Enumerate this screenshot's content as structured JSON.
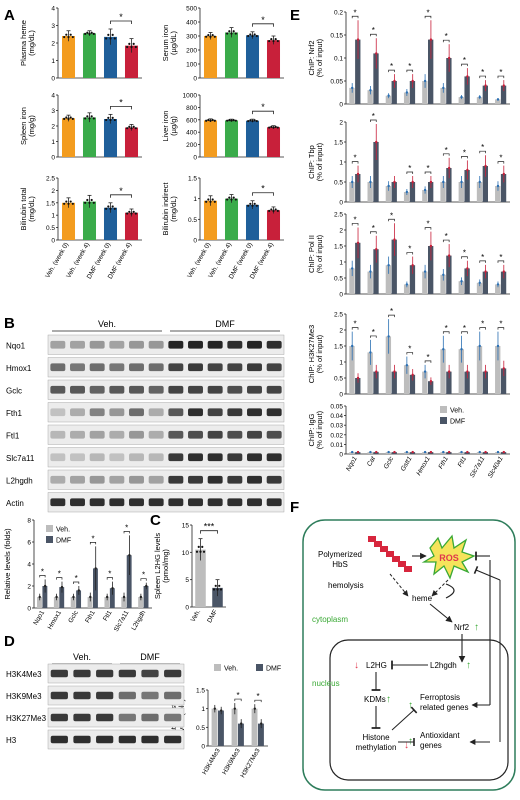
{
  "colors": {
    "veh0": "#f39c1f",
    "veh4": "#3aab4a",
    "dmf0": "#1f5f9a",
    "dmf4": "#c8203a",
    "grey": "#bdbdbd",
    "dark": "#4a5566",
    "accent": "#e0364c",
    "teal": "#2f8f75",
    "green": "#3aa935"
  },
  "panel_letters": {
    "A": "A",
    "B": "B",
    "C": "C",
    "D": "D",
    "E": "E",
    "F": "F"
  },
  "panel_a_xlabels": [
    "Veh. (week 0)",
    "Veh. (week 4)",
    "DMF (week 0)",
    "DMF (week 4)"
  ],
  "chart_data": [
    {
      "type": "bar",
      "id": "a-heme",
      "ylabel_lines": [
        "Plasma heme",
        "(mg/dL)"
      ],
      "ylim": [
        0,
        4
      ],
      "ticks": [
        0,
        1,
        2,
        3,
        4
      ],
      "categories": [
        "Veh. (week 0)",
        "Veh. (week 4)",
        "DMF (week 0)",
        "DMF (week 4)"
      ],
      "values": [
        2.4,
        2.55,
        2.35,
        1.85
      ],
      "errors": [
        0.3,
        0.15,
        0.45,
        0.4
      ],
      "sig": "*"
    },
    {
      "type": "bar",
      "id": "a-serum",
      "ylabel_lines": [
        "Serum iron",
        "(µg/dL)"
      ],
      "ylim": [
        0,
        500
      ],
      "ticks": [
        0,
        100,
        200,
        300,
        400,
        500
      ],
      "categories": [
        "Veh. (week 0)",
        "Veh. (week 4)",
        "DMF (week 0)",
        "DMF (week 4)"
      ],
      "values": [
        300,
        325,
        305,
        270
      ],
      "errors": [
        25,
        35,
        25,
        30
      ],
      "sig": "*"
    },
    {
      "type": "bar",
      "id": "a-spleen",
      "ylabel_lines": [
        "Spleen iron",
        "(mg/g)"
      ],
      "ylim": [
        0,
        4
      ],
      "ticks": [
        0,
        1,
        2,
        3,
        4
      ],
      "categories": [
        "Veh. (week 0)",
        "Veh. (week 4)",
        "DMF (week 0)",
        "DMF (week 4)"
      ],
      "values": [
        2.5,
        2.55,
        2.45,
        1.9
      ],
      "errors": [
        0.2,
        0.3,
        0.3,
        0.2
      ],
      "sig": "*"
    },
    {
      "type": "bar",
      "id": "a-liver",
      "ylabel_lines": [
        "Liver iron",
        "(µg/g)"
      ],
      "ylim": [
        0,
        1000
      ],
      "ticks": [
        0,
        200,
        400,
        600,
        800,
        1000
      ],
      "categories": [
        "Veh. (week 0)",
        "Veh. (week 4)",
        "DMF (week 0)",
        "DMF (week 4)"
      ],
      "values": [
        590,
        590,
        585,
        480
      ],
      "errors": [
        25,
        20,
        25,
        25
      ],
      "sig": "*"
    },
    {
      "type": "bar",
      "id": "a-bilitot",
      "ylabel_lines": [
        "Bilirubin total",
        "(mg/dL)"
      ],
      "ylim": [
        0,
        2.5
      ],
      "ticks": [
        0,
        0.5,
        1.0,
        1.5,
        2.0,
        2.5
      ],
      "categories": [
        "Veh. (week 0)",
        "Veh. (week 4)",
        "DMF (week 0)",
        "DMF (week 4)"
      ],
      "values": [
        1.5,
        1.55,
        1.3,
        1.1
      ],
      "errors": [
        0.2,
        0.25,
        0.2,
        0.15
      ],
      "sig": "*"
    },
    {
      "type": "bar",
      "id": "a-biliind",
      "ylabel_lines": [
        "Bilirubin indirect",
        "(mg/dL)"
      ],
      "ylim": [
        0,
        1.5
      ],
      "ticks": [
        0,
        0.5,
        1.0,
        1.5
      ],
      "categories": [
        "Veh. (week 0)",
        "Veh. (week 4)",
        "DMF (week 0)",
        "DMF (week 4)"
      ],
      "values": [
        0.95,
        1.0,
        0.85,
        0.72
      ],
      "errors": [
        0.12,
        0.1,
        0.1,
        0.08
      ],
      "sig": "*"
    },
    {
      "type": "bar",
      "id": "b-quant",
      "ylabel": "Relative levels (folds)",
      "ylim": [
        0,
        8
      ],
      "ticks": [
        0,
        2,
        4,
        6,
        8
      ],
      "categories": [
        "Nqo1",
        "Hmox1",
        "Gclc",
        "Fth1",
        "Ftl1",
        "Slc7a11",
        "L2hgdh"
      ],
      "series": [
        {
          "name": "Veh.",
          "values": [
            1,
            1,
            1,
            1,
            1,
            1,
            1
          ],
          "errors": [
            0.3,
            0.3,
            0.3,
            0.4,
            0.3,
            0.4,
            0.3
          ]
        },
        {
          "name": "DMF",
          "values": [
            2.0,
            1.9,
            1.6,
            3.6,
            1.8,
            4.8,
            2.0
          ],
          "errors": [
            0.6,
            0.5,
            0.4,
            2.0,
            0.6,
            1.8,
            0.3
          ]
        }
      ],
      "sig": [
        "*",
        "*",
        "*",
        "*",
        "*",
        "*",
        "*"
      ]
    },
    {
      "type": "bar",
      "id": "c-l2hg",
      "ylabel_lines": [
        "Spleen L2HG levels",
        "(pmol/mg)"
      ],
      "ylim": [
        0,
        15
      ],
      "ticks": [
        0,
        5,
        10,
        15
      ],
      "categories": [
        "Veh.",
        "DMF"
      ],
      "values": [
        10.5,
        3.5
      ],
      "errors": [
        2.0,
        1.5
      ],
      "sig": "***"
    },
    {
      "type": "bar",
      "id": "d-hist",
      "ylabel_lines": [
        "Relative histone",
        "levels (fold)"
      ],
      "ylim": [
        0,
        1.5
      ],
      "ticks": [
        0,
        0.5,
        1.0,
        1.5
      ],
      "categories": [
        "H3K4Me3",
        "H3K9Me3",
        "H3K27Me3"
      ],
      "series": [
        {
          "name": "Veh.",
          "values": [
            1.0,
            1.0,
            1.0
          ],
          "errors": [
            0.1,
            0.15,
            0.12
          ]
        },
        {
          "name": "DMF",
          "values": [
            0.95,
            0.6,
            0.6
          ],
          "errors": [
            0.1,
            0.12,
            0.12
          ]
        }
      ],
      "sig": [
        "",
        "*",
        "*"
      ]
    },
    {
      "type": "bar",
      "id": "e-nrf2",
      "ylabel_lines": [
        "ChIP: Nrf2",
        "(% of input)"
      ],
      "ylim": [
        0,
        0.2
      ],
      "ticks": [
        0,
        0.05,
        0.1,
        0.15,
        0.2
      ],
      "categories": [
        "Nqo1",
        "Cat",
        "Gclc",
        "Gstt1",
        "Hmox1",
        "Fth1",
        "Ftl1",
        "Slc7a11",
        "Slc40a1"
      ],
      "series": [
        {
          "name": "Veh.",
          "values": [
            0.035,
            0.03,
            0.018,
            0.025,
            0.05,
            0.035,
            0.015,
            0.015,
            0.01
          ]
        },
        {
          "name": "DMF",
          "values": [
            0.14,
            0.11,
            0.05,
            0.05,
            0.14,
            0.1,
            0.06,
            0.04,
            0.04
          ]
        }
      ],
      "sig": [
        "*",
        "*",
        "*",
        "*",
        "*",
        "*",
        "*",
        "*",
        "*"
      ]
    },
    {
      "type": "bar",
      "id": "e-tbp",
      "ylabel_lines": [
        "ChIP: Tbp",
        "(% of input)"
      ],
      "ylim": [
        0,
        2.0
      ],
      "ticks": [
        0,
        0.5,
        1.0,
        1.5,
        2.0
      ],
      "categories": [
        "Nqo1",
        "Cat",
        "Gclc",
        "Gstt1",
        "Hmox1",
        "Fth1",
        "Ftl1",
        "Slc7a11",
        "Slc40a1"
      ],
      "series": [
        {
          "name": "Veh.",
          "values": [
            0.5,
            0.5,
            0.4,
            0.25,
            0.3,
            0.5,
            0.5,
            0.5,
            0.4
          ]
        },
        {
          "name": "DMF",
          "values": [
            0.7,
            1.5,
            0.5,
            0.5,
            0.5,
            0.85,
            0.8,
            0.9,
            0.7
          ]
        }
      ],
      "sig": [
        "*",
        "*",
        "",
        "*",
        "*",
        "*",
        "*",
        "*",
        "*"
      ]
    },
    {
      "type": "bar",
      "id": "e-pol",
      "ylabel_lines": [
        "ChIP: Pol II",
        "(% of input)"
      ],
      "ylim": [
        0,
        2.5
      ],
      "ticks": [
        0,
        0.5,
        1.0,
        1.5,
        2.0,
        2.5
      ],
      "categories": [
        "Nqo1",
        "Cat",
        "Gclc",
        "Gstt1",
        "Hmox1",
        "Fth1",
        "Ftl1",
        "Slc7a11",
        "Slc40a1"
      ],
      "series": [
        {
          "name": "Veh.",
          "values": [
            0.8,
            0.7,
            0.9,
            0.3,
            0.7,
            0.6,
            0.4,
            0.35,
            0.3
          ]
        },
        {
          "name": "DMF",
          "values": [
            1.6,
            1.4,
            1.7,
            0.9,
            1.5,
            1.2,
            0.8,
            0.7,
            0.7
          ]
        }
      ],
      "sig": [
        "*",
        "*",
        "*",
        "*",
        "*",
        "*",
        "*",
        "*",
        "*"
      ]
    },
    {
      "type": "bar",
      "id": "e-h3k27",
      "ylabel_lines": [
        "ChIP: H3K27Me3",
        "(% of input)"
      ],
      "ylim": [
        0,
        2.5
      ],
      "ticks": [
        0,
        0.5,
        1.0,
        1.5,
        2.0,
        2.5
      ],
      "categories": [
        "Nqo1",
        "Cat",
        "Gclc",
        "Gstt1",
        "Hmox1",
        "Fth1",
        "Ftl1",
        "Slc7a11",
        "Slc40a1"
      ],
      "series": [
        {
          "name": "Veh.",
          "values": [
            1.5,
            1.3,
            1.8,
            0.9,
            0.7,
            1.4,
            1.4,
            1.5,
            1.5
          ]
        },
        {
          "name": "DMF",
          "values": [
            0.5,
            0.7,
            0.7,
            0.6,
            0.4,
            0.7,
            0.7,
            0.7,
            0.8
          ]
        }
      ],
      "sig": [
        "*",
        "*",
        "*",
        "*",
        "*",
        "*",
        "*",
        "*",
        "*"
      ]
    },
    {
      "type": "bar",
      "id": "e-igg",
      "ylabel_lines": [
        "ChIP: IgG",
        "(% of input)"
      ],
      "ylim": [
        0,
        0.05
      ],
      "ticks": [
        0,
        0.01,
        0.02,
        0.03,
        0.04,
        0.05
      ],
      "categories": [
        "Nqo1",
        "Cat",
        "Gclc",
        "Gstt1",
        "Hmox1",
        "Fth1",
        "Ftl1",
        "Slc7a11",
        "Slc40a1"
      ],
      "series": [
        {
          "name": "Veh.",
          "values": [
            0.002,
            0.002,
            0.002,
            0.002,
            0.002,
            0.002,
            0.002,
            0.002,
            0.002
          ]
        },
        {
          "name": "DMF",
          "values": [
            0.002,
            0.002,
            0.002,
            0.002,
            0.002,
            0.002,
            0.002,
            0.002,
            0.002
          ]
        }
      ],
      "sig": [
        "",
        "",
        "",
        "",
        "",
        "",
        "",
        "",
        ""
      ]
    }
  ],
  "legend": {
    "veh": "Veh.",
    "dmf": "DMF"
  },
  "blot_b": {
    "group_veh": "Veh.",
    "group_dmf": "DMF",
    "rows": [
      "Nqo1",
      "Hmox1",
      "Gclc",
      "Fth1",
      "Ftl1",
      "Slc7a11",
      "L2hgdh",
      "Actin"
    ],
    "intensities": [
      [
        0.35,
        0.35,
        0.4,
        0.35,
        0.4,
        0.4,
        0.95,
        0.95,
        0.95,
        0.9,
        0.95,
        0.9
      ],
      [
        0.6,
        0.55,
        0.6,
        0.55,
        0.6,
        0.6,
        0.8,
        0.85,
        0.8,
        0.8,
        0.85,
        0.8
      ],
      [
        0.7,
        0.7,
        0.65,
        0.7,
        0.7,
        0.65,
        0.8,
        0.8,
        0.8,
        0.75,
        0.8,
        0.8
      ],
      [
        0.2,
        0.3,
        0.5,
        0.4,
        0.6,
        0.3,
        0.7,
        0.9,
        0.8,
        0.85,
        0.9,
        0.9
      ],
      [
        0.25,
        0.3,
        0.35,
        0.3,
        0.4,
        0.3,
        0.7,
        0.75,
        0.8,
        0.75,
        0.8,
        0.75
      ],
      [
        0.2,
        0.2,
        0.25,
        0.2,
        0.25,
        0.25,
        0.85,
        0.9,
        0.9,
        0.85,
        0.9,
        0.9
      ],
      [
        0.3,
        0.35,
        0.4,
        0.35,
        0.4,
        0.35,
        0.85,
        0.85,
        0.9,
        0.85,
        0.9,
        0.85
      ],
      [
        0.9,
        0.9,
        0.9,
        0.9,
        0.9,
        0.9,
        0.9,
        0.9,
        0.9,
        0.9,
        0.9,
        0.9
      ]
    ]
  },
  "blot_d": {
    "group_veh": "Veh.",
    "group_dmf": "DMF",
    "rows": [
      "H3K4Me3",
      "H3K9Me3",
      "H3K27Me3",
      "H3"
    ],
    "intensities": [
      [
        0.85,
        0.85,
        0.85,
        0.85,
        0.8,
        0.85
      ],
      [
        0.85,
        0.85,
        0.85,
        0.6,
        0.55,
        0.6
      ],
      [
        0.85,
        0.85,
        0.85,
        0.55,
        0.6,
        0.55
      ],
      [
        0.9,
        0.9,
        0.9,
        0.9,
        0.9,
        0.9
      ]
    ]
  },
  "diagram_f": {
    "hbs_line1": "Polymerized",
    "hbs_line2": "HbS",
    "ros": "ROS",
    "hemolysis": "hemolysis",
    "heme": "heme",
    "cytoplasm": "cytoplasm",
    "nrf2": "Nrf2",
    "l2hg": "L2HG",
    "l2hgdh": "L2hgdh",
    "nucleus": "nucleus",
    "kdms": "KDMs",
    "ferro1": "Ferroptosis",
    "ferro2": "related genes",
    "histone1": "Histone",
    "histone2": "methylation",
    "antiox1": "Antioxidant",
    "antiox2": "genes"
  }
}
